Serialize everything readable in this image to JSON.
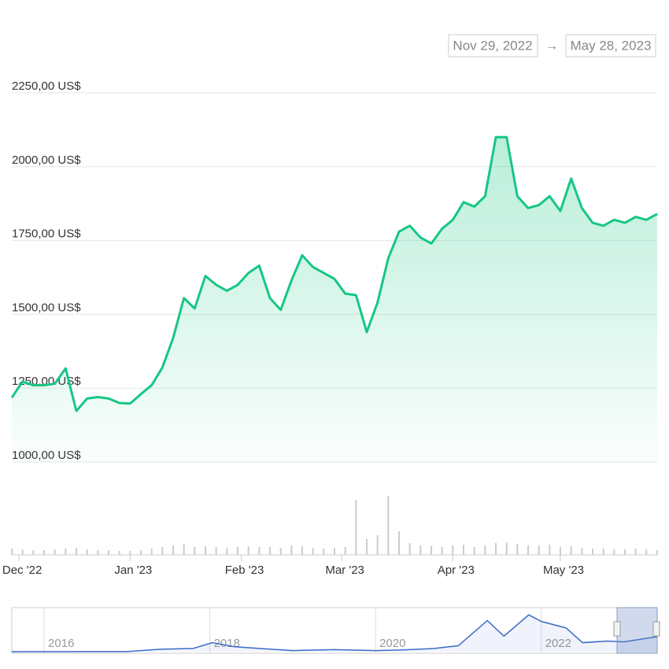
{
  "chart_data": {
    "type": "line",
    "range_start": "Nov 29, 2022",
    "range_arrow": "→",
    "range_end": "May 28, 2023",
    "x": [
      "2022-11-29",
      "2022-12-02",
      "2022-12-05",
      "2022-12-08",
      "2022-12-11",
      "2022-12-14",
      "2022-12-17",
      "2022-12-20",
      "2022-12-23",
      "2022-12-26",
      "2022-12-29",
      "2023-01-01",
      "2023-01-04",
      "2023-01-07",
      "2023-01-10",
      "2023-01-13",
      "2023-01-16",
      "2023-01-19",
      "2023-01-22",
      "2023-01-25",
      "2023-01-28",
      "2023-01-31",
      "2023-02-03",
      "2023-02-06",
      "2023-02-09",
      "2023-02-12",
      "2023-02-15",
      "2023-02-18",
      "2023-02-21",
      "2023-02-24",
      "2023-02-27",
      "2023-03-02",
      "2023-03-05",
      "2023-03-08",
      "2023-03-11",
      "2023-03-14",
      "2023-03-17",
      "2023-03-20",
      "2023-03-23",
      "2023-03-26",
      "2023-03-29",
      "2023-04-01",
      "2023-04-04",
      "2023-04-07",
      "2023-04-10",
      "2023-04-13",
      "2023-04-16",
      "2023-04-19",
      "2023-04-22",
      "2023-04-25",
      "2023-04-28",
      "2023-05-01",
      "2023-05-04",
      "2023-05-07",
      "2023-05-10",
      "2023-05-13",
      "2023-05-16",
      "2023-05-19",
      "2023-05-22",
      "2023-05-25",
      "2023-05-28"
    ],
    "series": [
      {
        "color": "#16c784",
        "values": [
          1218,
          1272,
          1260,
          1260,
          1265,
          1317,
          1173,
          1215,
          1220,
          1215,
          1200,
          1198,
          1230,
          1260,
          1320,
          1420,
          1555,
          1520,
          1630,
          1600,
          1580,
          1600,
          1640,
          1665,
          1555,
          1515,
          1615,
          1700,
          1660,
          1640,
          1620,
          1570,
          1565,
          1440,
          1540,
          1690,
          1780,
          1800,
          1760,
          1740,
          1790,
          1820,
          1880,
          1865,
          1900,
          2100,
          2100,
          1900,
          1860,
          1870,
          1900,
          1850,
          1960,
          1860,
          1810,
          1800,
          1820,
          1810,
          1830,
          1820,
          1840
        ]
      }
    ],
    "volume": [
      8,
      7,
      6,
      6,
      7,
      8,
      9,
      7,
      6,
      6,
      5,
      5,
      6,
      8,
      10,
      12,
      14,
      10,
      11,
      10,
      9,
      10,
      11,
      10,
      10,
      9,
      12,
      11,
      9,
      8,
      9,
      10,
      70,
      20,
      25,
      75,
      30,
      15,
      12,
      11,
      10,
      12,
      13,
      10,
      12,
      15,
      16,
      14,
      12,
      12,
      13,
      10,
      11,
      9,
      8,
      8,
      7,
      7,
      8,
      7,
      6
    ],
    "xlim": [
      "2022-11-29",
      "2023-05-28"
    ],
    "xticks": [
      {
        "value": "2022-12-01",
        "label": "Dec '22"
      },
      {
        "value": "2023-01-01",
        "label": "Jan '23"
      },
      {
        "value": "2023-02-01",
        "label": "Feb '23"
      },
      {
        "value": "2023-03-01",
        "label": "Mar '23"
      },
      {
        "value": "2023-04-01",
        "label": "Apr '23"
      },
      {
        "value": "2023-05-01",
        "label": "May '23"
      }
    ],
    "ylim": [
      1000,
      2250
    ],
    "yticks": [
      {
        "value": 1000,
        "label": "1000,00 US$"
      },
      {
        "value": 1250,
        "label": "1250,00 US$"
      },
      {
        "value": 1500,
        "label": "1500,00 US$"
      },
      {
        "value": 1750,
        "label": "1750,00 US$"
      },
      {
        "value": 2000,
        "label": "2000,00 US$"
      },
      {
        "value": 2250,
        "label": "2250,00 US$"
      }
    ],
    "grid": true,
    "navigator": {
      "color": "#3a6bc9",
      "xlim": [
        2015.61,
        2023.4
      ],
      "ylim": [
        0,
        5000
      ],
      "x": [
        2015.61,
        2016.5,
        2017.0,
        2017.4,
        2017.8,
        2018.03,
        2018.3,
        2018.6,
        2019.0,
        2019.5,
        2020.0,
        2020.3,
        2020.7,
        2021.0,
        2021.35,
        2021.55,
        2021.85,
        2022.0,
        2022.3,
        2022.5,
        2022.8,
        2023.0,
        2023.4
      ],
      "values": [
        1,
        10,
        10,
        300,
        400,
        1100,
        600,
        400,
        130,
        250,
        130,
        200,
        380,
        730,
        3800,
        1900,
        4500,
        3700,
        2900,
        1100,
        1300,
        1200,
        1840
      ],
      "xticks": [
        2016,
        2018,
        2020,
        2022
      ]
    }
  }
}
